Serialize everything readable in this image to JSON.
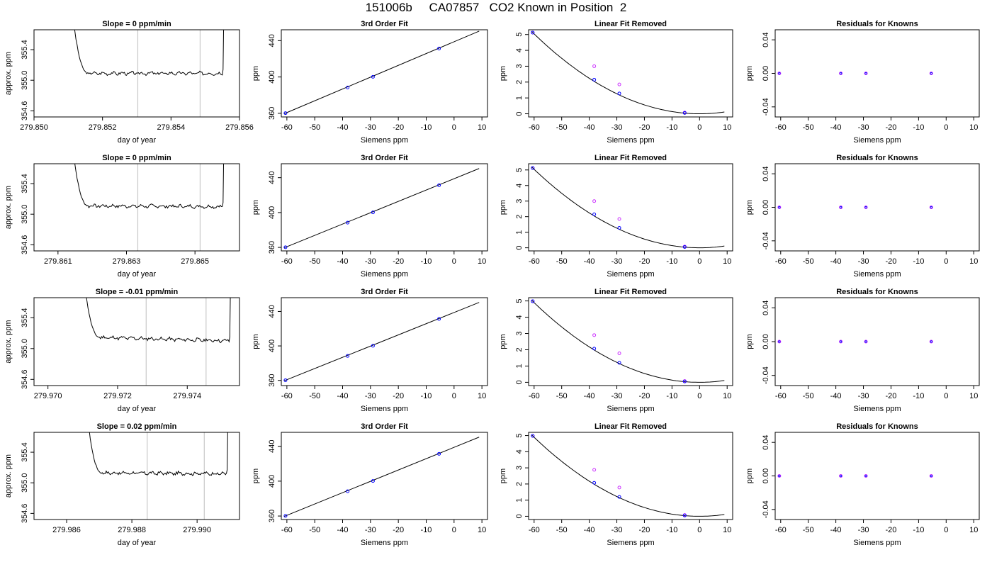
{
  "page": {
    "title": "151006b     CA07857   CO2 Known in Position  2"
  },
  "colors": {
    "axis": "#000000",
    "trace": "#000000",
    "vline": "#c8c8c8",
    "fit_point": "#0000ff",
    "raw_point": "#cc33ff",
    "std_point": "#cc33ff"
  },
  "chart_data": [
    {
      "type": "line",
      "row": 0,
      "title": "Slope =  0  ppm/min",
      "xlabel": "day of year",
      "ylabel": "approx. ppm",
      "xlim": [
        279.85,
        279.856
      ],
      "ylim": [
        354.52,
        355.66
      ],
      "xticks": [
        279.85,
        279.852,
        279.854,
        279.856
      ],
      "xtick_labels": [
        "279.850",
        "279.852",
        "279.854",
        "279.856"
      ],
      "yticks": [
        354.6,
        355.0,
        355.4
      ],
      "ytick_labels": [
        "354.6",
        "355.0",
        "355.4"
      ],
      "vlines": [
        279.85303,
        279.85485
      ],
      "x_start": 279.8511,
      "x_end": 279.8555,
      "settle_end": 279.8516,
      "plateau": [
        355.09,
        355.09
      ],
      "seed": 3
    },
    {
      "type": "scatter",
      "row": 0,
      "title": "3rd Order Fit",
      "xlabel": "Siemens ppm",
      "ylabel": "ppm",
      "xlim": [
        -62,
        12
      ],
      "ylim": [
        356,
        452
      ],
      "xticks": [
        -60,
        -50,
        -40,
        -30,
        -20,
        -10,
        0,
        10
      ],
      "xtick_labels": [
        "-60",
        "-50",
        "-40",
        "-30",
        "-20",
        "-10",
        "0",
        "10"
      ],
      "yticks": [
        360,
        400,
        440
      ],
      "ytick_labels": [
        "360",
        "400",
        "440"
      ],
      "line": [
        [
          -61,
          359.5
        ],
        [
          9,
          450.5
        ]
      ],
      "points": [
        [
          -60.5,
          360.2
        ],
        [
          -38.2,
          388.4
        ],
        [
          -29.1,
          400.2
        ],
        [
          -5.4,
          431.3
        ]
      ]
    },
    {
      "type": "scatter",
      "row": 0,
      "title": "Linear Fit Removed",
      "xlabel": "Siemens ppm",
      "ylabel": "ppm",
      "xlim": [
        -62,
        12
      ],
      "ylim": [
        -0.2,
        5.3
      ],
      "xticks": [
        -60,
        -50,
        -40,
        -30,
        -20,
        -10,
        0,
        10
      ],
      "xtick_labels": [
        "-60",
        "-50",
        "-40",
        "-30",
        "-20",
        "-10",
        "0",
        "10"
      ],
      "yticks": [
        0,
        1,
        2,
        3,
        4,
        5
      ],
      "ytick_labels": [
        "0",
        "1",
        "2",
        "3",
        "4",
        "5"
      ],
      "curve": {
        "a": 0.0014,
        "v": 0,
        "x0": -61,
        "x1": 9
      },
      "fit_points": [
        [
          -60.5,
          5.12
        ],
        [
          -38.2,
          2.15
        ],
        [
          -29.1,
          1.28
        ],
        [
          -5.4,
          0.05
        ]
      ],
      "raw_points": [
        [
          -60.5,
          5.12
        ],
        [
          -38.2,
          3.0
        ],
        [
          -29.1,
          1.85
        ],
        [
          -5.4,
          0.08
        ]
      ]
    },
    {
      "type": "scatter",
      "row": 0,
      "title": "Residuals for Knowns",
      "xlabel": "Siemens ppm",
      "ylabel": "ppm",
      "xlim": [
        -62,
        12
      ],
      "ylim": [
        -0.052,
        0.052
      ],
      "xticks": [
        -60,
        -50,
        -40,
        -30,
        -20,
        -10,
        0,
        10
      ],
      "xtick_labels": [
        "-60",
        "-50",
        "-40",
        "-30",
        "-20",
        "-10",
        "0",
        "10"
      ],
      "yticks": [
        -0.04,
        0.0,
        0.04
      ],
      "ytick_labels": [
        "-0.04",
        "0.00",
        "0.04"
      ],
      "points": [
        [
          -60.5,
          0
        ],
        [
          -38.2,
          0
        ],
        [
          -29.1,
          0
        ],
        [
          -5.4,
          0
        ]
      ]
    },
    {
      "type": "line",
      "row": 1,
      "title": "Slope =  0  ppm/min",
      "xlabel": "day of year",
      "ylabel": "approx. ppm",
      "xlim": [
        279.8603,
        279.8663
      ],
      "ylim": [
        354.52,
        355.66
      ],
      "xticks": [
        279.861,
        279.863,
        279.865
      ],
      "xtick_labels": [
        "279.861",
        "279.863",
        "279.865"
      ],
      "yticks": [
        354.6,
        355.0,
        355.4
      ],
      "ytick_labels": [
        "354.6",
        "355.0",
        "355.4"
      ],
      "vlines": [
        279.86333,
        279.86515
      ],
      "x_start": 279.8614,
      "x_end": 279.8658,
      "settle_end": 279.8619,
      "plateau": [
        355.11,
        355.1
      ],
      "seed": 7
    },
    {
      "type": "scatter",
      "row": 1,
      "title": "3rd Order Fit",
      "xlabel": "Siemens ppm",
      "ylabel": "ppm",
      "xlim": [
        -62,
        12
      ],
      "ylim": [
        356,
        456
      ],
      "xticks": [
        -60,
        -50,
        -40,
        -30,
        -20,
        -10,
        0,
        10
      ],
      "xtick_labels": [
        "-60",
        "-50",
        "-40",
        "-30",
        "-20",
        "-10",
        "0",
        "10"
      ],
      "yticks": [
        360,
        400,
        440
      ],
      "ytick_labels": [
        "360",
        "400",
        "440"
      ],
      "line": [
        [
          -61,
          359.5
        ],
        [
          9,
          450.5
        ]
      ],
      "points": [
        [
          -60.5,
          360.2
        ],
        [
          -38.2,
          388.4
        ],
        [
          -29.1,
          400.2
        ],
        [
          -5.4,
          431.3
        ]
      ]
    },
    {
      "type": "scatter",
      "row": 1,
      "title": "Linear Fit Removed",
      "xlabel": "Siemens ppm",
      "ylabel": "ppm",
      "xlim": [
        -62,
        12
      ],
      "ylim": [
        -0.2,
        5.4
      ],
      "xticks": [
        -60,
        -50,
        -40,
        -30,
        -20,
        -10,
        0,
        10
      ],
      "xtick_labels": [
        "-60",
        "-50",
        "-40",
        "-30",
        "-20",
        "-10",
        "0",
        "10"
      ],
      "yticks": [
        0,
        1,
        2,
        3,
        4,
        5
      ],
      "ytick_labels": [
        "0",
        "1",
        "2",
        "3",
        "4",
        "5"
      ],
      "curve": {
        "a": 0.0014,
        "v": 0,
        "x0": -61,
        "x1": 9
      },
      "fit_points": [
        [
          -60.5,
          5.12
        ],
        [
          -38.2,
          2.15
        ],
        [
          -29.1,
          1.28
        ],
        [
          -5.4,
          0.05
        ]
      ],
      "raw_points": [
        [
          -60.5,
          5.12
        ],
        [
          -38.2,
          3.0
        ],
        [
          -29.1,
          1.85
        ],
        [
          -5.4,
          0.08
        ]
      ]
    },
    {
      "type": "scatter",
      "row": 1,
      "title": "Residuals for Knowns",
      "xlabel": "Siemens ppm",
      "ylabel": "ppm",
      "xlim": [
        -62,
        12
      ],
      "ylim": [
        -0.052,
        0.052
      ],
      "xticks": [
        -60,
        -50,
        -40,
        -30,
        -20,
        -10,
        0,
        10
      ],
      "xtick_labels": [
        "-60",
        "-50",
        "-40",
        "-30",
        "-20",
        "-10",
        "0",
        "10"
      ],
      "yticks": [
        -0.04,
        0.0,
        0.04
      ],
      "ytick_labels": [
        "-0.04",
        "0.00",
        "0.04"
      ],
      "points": [
        [
          -60.5,
          0
        ],
        [
          -38.2,
          0
        ],
        [
          -29.1,
          0
        ],
        [
          -5.4,
          0
        ]
      ]
    },
    {
      "type": "line",
      "row": 2,
      "title": "Slope =  -0.01  ppm/min",
      "xlabel": "day of year",
      "ylabel": "approx. ppm",
      "xlim": [
        279.9696,
        279.9755
      ],
      "ylim": [
        354.52,
        355.66
      ],
      "xticks": [
        279.97,
        279.972,
        279.974
      ],
      "xtick_labels": [
        "279.970",
        "279.972",
        "279.974"
      ],
      "yticks": [
        354.6,
        355.0,
        355.4
      ],
      "ytick_labels": [
        "354.6",
        "355.0",
        "355.4"
      ],
      "vlines": [
        279.97282,
        279.97454
      ],
      "x_start": 279.971,
      "x_end": 279.9752,
      "settle_end": 279.9715,
      "plateau": [
        355.15,
        355.1
      ],
      "seed": 11
    },
    {
      "type": "scatter",
      "row": 2,
      "title": "3rd Order Fit",
      "xlabel": "Siemens ppm",
      "ylabel": "ppm",
      "xlim": [
        -62,
        12
      ],
      "ylim": [
        354,
        456
      ],
      "xticks": [
        -60,
        -50,
        -40,
        -30,
        -20,
        -10,
        0,
        10
      ],
      "xtick_labels": [
        "-60",
        "-50",
        "-40",
        "-30",
        "-20",
        "-10",
        "0",
        "10"
      ],
      "yticks": [
        360,
        400,
        440
      ],
      "ytick_labels": [
        "360",
        "400",
        "440"
      ],
      "line": [
        [
          -61,
          359.5
        ],
        [
          9,
          450.5
        ]
      ],
      "points": [
        [
          -60.5,
          360.2
        ],
        [
          -38.2,
          388.4
        ],
        [
          -29.1,
          400.2
        ],
        [
          -5.4,
          431.3
        ]
      ]
    },
    {
      "type": "scatter",
      "row": 2,
      "title": "Linear Fit Removed",
      "xlabel": "Siemens ppm",
      "ylabel": "ppm",
      "xlim": [
        -62,
        12
      ],
      "ylim": [
        -0.2,
        5.2
      ],
      "xticks": [
        -60,
        -50,
        -40,
        -30,
        -20,
        -10,
        0,
        10
      ],
      "xtick_labels": [
        "-60",
        "-50",
        "-40",
        "-30",
        "-20",
        "-10",
        "0",
        "10"
      ],
      "yticks": [
        0,
        1,
        2,
        3,
        4,
        5
      ],
      "ytick_labels": [
        "0",
        "1",
        "2",
        "3",
        "4",
        "5"
      ],
      "curve": {
        "a": 0.00136,
        "v": 0,
        "x0": -61,
        "x1": 9
      },
      "fit_points": [
        [
          -60.5,
          4.98
        ],
        [
          -38.2,
          2.07
        ],
        [
          -29.1,
          1.2
        ],
        [
          -5.4,
          0.05
        ]
      ],
      "raw_points": [
        [
          -60.5,
          4.98
        ],
        [
          -38.2,
          2.9
        ],
        [
          -29.1,
          1.78
        ],
        [
          -5.4,
          0.08
        ]
      ]
    },
    {
      "type": "scatter",
      "row": 2,
      "title": "Residuals for Knowns",
      "xlabel": "Siemens ppm",
      "ylabel": "ppm",
      "xlim": [
        -62,
        12
      ],
      "ylim": [
        -0.052,
        0.052
      ],
      "xticks": [
        -60,
        -50,
        -40,
        -30,
        -20,
        -10,
        0,
        10
      ],
      "xtick_labels": [
        "-60",
        "-50",
        "-40",
        "-30",
        "-20",
        "-10",
        "0",
        "10"
      ],
      "yticks": [
        -0.04,
        0.0,
        0.04
      ],
      "ytick_labels": [
        "-0.04",
        "0.00",
        "0.04"
      ],
      "points": [
        [
          -60.5,
          0
        ],
        [
          -38.2,
          0
        ],
        [
          -29.1,
          0
        ],
        [
          -5.4,
          0
        ]
      ]
    },
    {
      "type": "line",
      "row": 3,
      "title": "Slope =  0.02  ppm/min",
      "xlabel": "day of year",
      "ylabel": "approx. ppm",
      "xlim": [
        279.985,
        279.9913
      ],
      "ylim": [
        354.52,
        355.66
      ],
      "xticks": [
        279.986,
        279.988,
        279.99
      ],
      "xtick_labels": [
        "279.986",
        "279.988",
        "279.990"
      ],
      "yticks": [
        354.6,
        355.0,
        355.4
      ],
      "ytick_labels": [
        "354.6",
        "355.0",
        "355.4"
      ],
      "vlines": [
        279.98847,
        279.99022
      ],
      "x_start": 279.9866,
      "x_end": 279.9909,
      "settle_end": 279.9871,
      "plateau": [
        355.13,
        355.12
      ],
      "seed": 17
    },
    {
      "type": "scatter",
      "row": 3,
      "title": "3rd Order Fit",
      "xlabel": "Siemens ppm",
      "ylabel": "ppm",
      "xlim": [
        -62,
        12
      ],
      "ylim": [
        356,
        456
      ],
      "xticks": [
        -60,
        -50,
        -40,
        -30,
        -20,
        -10,
        0,
        10
      ],
      "xtick_labels": [
        "-60",
        "-50",
        "-40",
        "-30",
        "-20",
        "-10",
        "0",
        "10"
      ],
      "yticks": [
        360,
        400,
        440
      ],
      "ytick_labels": [
        "360",
        "400",
        "440"
      ],
      "line": [
        [
          -61,
          359.5
        ],
        [
          9,
          450.5
        ]
      ],
      "points": [
        [
          -60.5,
          360.2
        ],
        [
          -38.2,
          388.4
        ],
        [
          -29.1,
          400.2
        ],
        [
          -5.4,
          431.3
        ]
      ]
    },
    {
      "type": "scatter",
      "row": 3,
      "title": "Linear Fit Removed",
      "xlabel": "Siemens ppm",
      "ylabel": "ppm",
      "xlim": [
        -62,
        12
      ],
      "ylim": [
        -0.2,
        5.2
      ],
      "xticks": [
        -60,
        -50,
        -40,
        -30,
        -20,
        -10,
        0,
        10
      ],
      "xtick_labels": [
        "-60",
        "-50",
        "-40",
        "-30",
        "-20",
        "-10",
        "0",
        "10"
      ],
      "yticks": [
        0,
        1,
        2,
        3,
        4,
        5
      ],
      "ytick_labels": [
        "0",
        "1",
        "2",
        "3",
        "4",
        "5"
      ],
      "curve": {
        "a": 0.00136,
        "v": 0,
        "x0": -61,
        "x1": 9
      },
      "fit_points": [
        [
          -60.5,
          4.98
        ],
        [
          -38.2,
          2.07
        ],
        [
          -29.1,
          1.2
        ],
        [
          -5.4,
          0.05
        ]
      ],
      "raw_points": [
        [
          -60.5,
          4.98
        ],
        [
          -38.2,
          2.88
        ],
        [
          -29.1,
          1.78
        ],
        [
          -5.4,
          0.08
        ]
      ]
    },
    {
      "type": "scatter",
      "row": 3,
      "title": "Residuals for Knowns",
      "xlabel": "Siemens ppm",
      "ylabel": "ppm",
      "xlim": [
        -62,
        12
      ],
      "ylim": [
        -0.052,
        0.052
      ],
      "xticks": [
        -60,
        -50,
        -40,
        -30,
        -20,
        -10,
        0,
        10
      ],
      "xtick_labels": [
        "-60",
        "-50",
        "-40",
        "-30",
        "-20",
        "-10",
        "0",
        "10"
      ],
      "yticks": [
        -0.04,
        0.0,
        0.04
      ],
      "ytick_labels": [
        "-0.04",
        "0.00",
        "0.04"
      ],
      "points": [
        [
          -60.5,
          0
        ],
        [
          -38.2,
          0
        ],
        [
          -29.1,
          0
        ],
        [
          -5.4,
          0
        ]
      ]
    }
  ]
}
